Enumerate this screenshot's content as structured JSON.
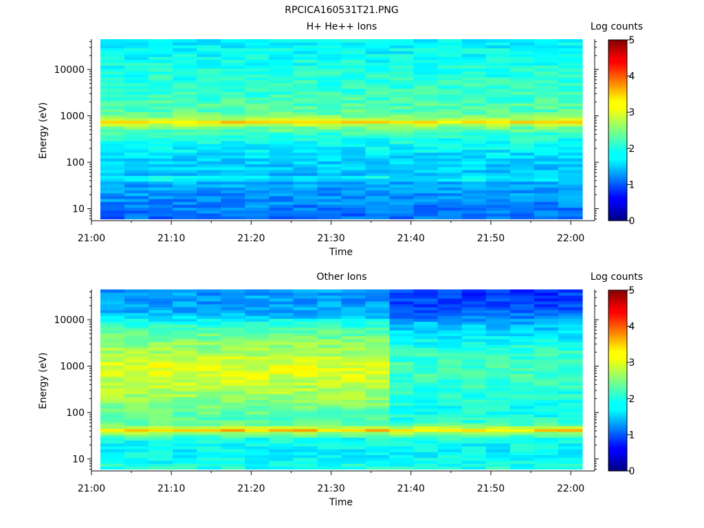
{
  "title": "RPCICA160531T21.PNG",
  "chart_data": [
    {
      "type": "heatmap",
      "title": "H+ He++ Ions",
      "xlabel": "Time",
      "ylabel": "Energy (eV)",
      "y_scale": "log",
      "y_range_ev": [
        5.5,
        45000
      ],
      "x_range": [
        "21:00",
        "22:03"
      ],
      "x_ticks": [
        "21:00",
        "21:10",
        "21:20",
        "21:30",
        "21:40",
        "21:50",
        "22:00"
      ],
      "y_ticks": [
        "10",
        "100",
        "1000",
        "10000"
      ],
      "colorbar_label": "Log counts",
      "colorbar_range": [
        0,
        5
      ],
      "colorbar_ticks": [
        "0",
        "1",
        "2",
        "3",
        "4",
        "5"
      ],
      "time_bins": [
        "21:00:40",
        "21:03:50",
        "21:07:00",
        "21:10:10",
        "21:13:20",
        "21:16:30",
        "21:19:40",
        "21:22:50",
        "21:26:00",
        "21:29:10",
        "21:32:20",
        "21:35:30",
        "21:38:40",
        "21:41:50",
        "21:45:00",
        "21:48:10",
        "21:51:20",
        "21:54:30",
        "21:57:40",
        "22:00:50"
      ],
      "profile": {
        "energy_ev": [
          7,
          10,
          14,
          20,
          28,
          38,
          45,
          55,
          70,
          100,
          150,
          250,
          400,
          600,
          750,
          900,
          1200,
          1700,
          2500,
          4000,
          7000,
          12000,
          20000,
          35000
        ],
        "log_counts": [
          1.15,
          1.25,
          1.3,
          1.35,
          1.4,
          1.5,
          2.0,
          1.55,
          1.6,
          1.65,
          1.75,
          1.9,
          2.1,
          2.5,
          3.3,
          2.6,
          2.3,
          2.25,
          2.15,
          2.1,
          2.05,
          2.0,
          1.9,
          1.85
        ]
      },
      "peak_band": {
        "energy_ev": 780,
        "log_counts": 3.3
      }
    },
    {
      "type": "heatmap",
      "title": "Other Ions",
      "xlabel": "Time",
      "ylabel": "Energy (eV)",
      "y_scale": "log",
      "y_range_ev": [
        5.5,
        45000
      ],
      "x_range": [
        "21:00",
        "22:03"
      ],
      "x_ticks": [
        "21:00",
        "21:10",
        "21:20",
        "21:30",
        "21:40",
        "21:50",
        "22:00"
      ],
      "y_ticks": [
        "10",
        "100",
        "1000",
        "10000"
      ],
      "colorbar_label": "Log counts",
      "colorbar_range": [
        0,
        5
      ],
      "colorbar_ticks": [
        "0",
        "1",
        "2",
        "3",
        "4",
        "5"
      ],
      "time_bins": [
        "21:00:40",
        "21:03:50",
        "21:07:00",
        "21:10:10",
        "21:13:20",
        "21:16:30",
        "21:19:40",
        "21:22:50",
        "21:26:00",
        "21:29:10",
        "21:32:20",
        "21:35:30",
        "21:38:40",
        "21:41:50",
        "21:45:00",
        "21:48:10",
        "21:51:20",
        "21:54:30",
        "21:57:40",
        "22:00:50"
      ],
      "profile_early": {
        "energy_ev": [
          7,
          10,
          14,
          20,
          28,
          36,
          42,
          50,
          60,
          80,
          120,
          200,
          400,
          800,
          1200,
          2000,
          3500,
          6000,
          9000,
          12000,
          18000,
          30000
        ],
        "log_counts": [
          2.0,
          1.9,
          1.85,
          1.9,
          2.0,
          2.6,
          3.4,
          2.6,
          2.3,
          2.3,
          2.4,
          2.6,
          2.8,
          3.0,
          2.9,
          2.7,
          2.5,
          2.3,
          2.0,
          1.6,
          1.4,
          1.4
        ]
      },
      "profile_late": {
        "energy_ev": [
          7,
          10,
          14,
          20,
          28,
          36,
          42,
          50,
          60,
          80,
          120,
          200,
          400,
          800,
          1200,
          2000,
          3500,
          6000,
          9000,
          12000,
          18000,
          30000
        ],
        "log_counts": [
          2.0,
          1.9,
          1.85,
          1.9,
          2.0,
          2.6,
          3.3,
          2.6,
          2.1,
          2.0,
          1.95,
          2.0,
          2.1,
          2.2,
          2.2,
          2.1,
          1.9,
          1.7,
          1.5,
          1.2,
          1.0,
          0.9
        ]
      },
      "transition_time": "21:36:40",
      "peak_band": {
        "energy_ev": 42,
        "log_counts": 3.4
      }
    }
  ]
}
